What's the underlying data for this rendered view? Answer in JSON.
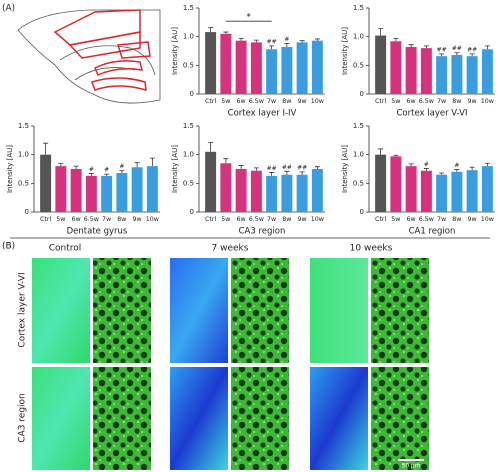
{
  "panel_labels": [
    "(A)",
    "(B)"
  ],
  "image_columns": [
    "Control",
    "7 weeks",
    "10 weeks"
  ],
  "image_rows": [
    "Cortex layer V-VI",
    "CA3 region"
  ],
  "scale_bar": "50 µm",
  "chart_data": [
    {
      "type": "bar",
      "title": "Cortex layer I-IV",
      "y_label": "Intensity [AU]",
      "categories": [
        "Ctrl",
        "5w",
        "6w",
        "6.5w",
        "7w",
        "8w",
        "9w",
        "10w"
      ],
      "values": [
        1.08,
        1.05,
        0.93,
        0.9,
        0.78,
        0.82,
        0.9,
        0.93
      ],
      "errors": [
        0.08,
        0.03,
        0.04,
        0.04,
        0.06,
        0.06,
        0.03,
        0.03
      ],
      "colors": [
        "#555555",
        "#d6337e",
        "#d6337e",
        "#d6337e",
        "#3a9de0",
        "#3a9de0",
        "#3a9de0",
        "#3a9de0"
      ],
      "markers": [
        null,
        null,
        null,
        null,
        "##",
        "#",
        null,
        null
      ],
      "bracket_label": "*",
      "ylim": [
        0,
        1.5
      ],
      "yticks": [
        0,
        0.5,
        {
          "value": 1,
          "label": "1.0"
        },
        1.5
      ]
    },
    {
      "type": "bar",
      "title": "Cortex layer V-VI",
      "y_label": "Intensity [AU]",
      "categories": [
        "Ctrl",
        "5w",
        "6w",
        "6.5w",
        "7w",
        "8w",
        "9w",
        "10w"
      ],
      "values": [
        1.02,
        0.92,
        0.82,
        0.8,
        0.66,
        0.68,
        0.66,
        0.78
      ],
      "errors": [
        0.12,
        0.05,
        0.04,
        0.04,
        0.04,
        0.04,
        0.04,
        0.06
      ],
      "colors": [
        "#555555",
        "#d6337e",
        "#d6337e",
        "#d6337e",
        "#3a9de0",
        "#3a9de0",
        "#3a9de0",
        "#3a9de0"
      ],
      "markers": [
        null,
        null,
        null,
        null,
        "##",
        "##",
        "##",
        null
      ],
      "ylim": [
        0,
        1.5
      ],
      "yticks": [
        0,
        0.5,
        {
          "value": 1,
          "label": "1.0"
        },
        1.5
      ]
    },
    {
      "type": "bar",
      "title": "Dentate gyrus",
      "y_label": "Intensity [AU]",
      "categories": [
        "Ctrl",
        "5w",
        "6w",
        "6.5w",
        "7w",
        "8w",
        "9w",
        "10w"
      ],
      "values": [
        1.0,
        0.8,
        0.75,
        0.63,
        0.63,
        0.68,
        0.78,
        0.8
      ],
      "errors": [
        0.2,
        0.05,
        0.05,
        0.04,
        0.03,
        0.04,
        0.08,
        0.14
      ],
      "colors": [
        "#555555",
        "#d6337e",
        "#d6337e",
        "#d6337e",
        "#3a9de0",
        "#3a9de0",
        "#3a9de0",
        "#3a9de0"
      ],
      "markers": [
        null,
        null,
        null,
        "#",
        "#",
        "#",
        null,
        null
      ],
      "ylim": [
        0,
        1.5
      ],
      "yticks": [
        0,
        0.5,
        {
          "value": 1,
          "label": "1.0"
        },
        1.5
      ]
    },
    {
      "type": "bar",
      "title": "CA3 region",
      "y_label": "Intensity [AU]",
      "categories": [
        "Ctrl",
        "5w",
        "6w",
        "6.5w",
        "7w",
        "8w",
        "9w",
        "10w"
      ],
      "values": [
        1.05,
        0.85,
        0.75,
        0.72,
        0.63,
        0.65,
        0.65,
        0.75
      ],
      "errors": [
        0.16,
        0.08,
        0.06,
        0.05,
        0.06,
        0.06,
        0.05,
        0.04
      ],
      "colors": [
        "#555555",
        "#d6337e",
        "#d6337e",
        "#d6337e",
        "#3a9de0",
        "#3a9de0",
        "#3a9de0",
        "#3a9de0"
      ],
      "markers": [
        null,
        null,
        null,
        null,
        "##",
        "##",
        "##",
        null
      ],
      "ylim": [
        0,
        1.5
      ],
      "yticks": [
        0,
        0.5,
        {
          "value": 1,
          "label": "1.0"
        },
        1.5
      ]
    },
    {
      "type": "bar",
      "title": "CA1 region",
      "y_label": "Intensity [AU]",
      "categories": [
        "Ctrl",
        "5w",
        "6w",
        "6.5w",
        "7w",
        "8w",
        "9w",
        "10w"
      ],
      "values": [
        1.0,
        0.97,
        0.8,
        0.72,
        0.65,
        0.7,
        0.73,
        0.8
      ],
      "errors": [
        0.1,
        0.02,
        0.04,
        0.04,
        0.03,
        0.04,
        0.05,
        0.05
      ],
      "colors": [
        "#555555",
        "#d6337e",
        "#d6337e",
        "#d6337e",
        "#3a9de0",
        "#3a9de0",
        "#3a9de0",
        "#3a9de0"
      ],
      "markers": [
        null,
        null,
        null,
        "#",
        null,
        "#",
        null,
        null
      ],
      "ylim": [
        0,
        1.5
      ],
      "yticks": [
        0,
        0.5,
        {
          "value": 1,
          "label": "1.0"
        },
        1.5
      ]
    }
  ]
}
